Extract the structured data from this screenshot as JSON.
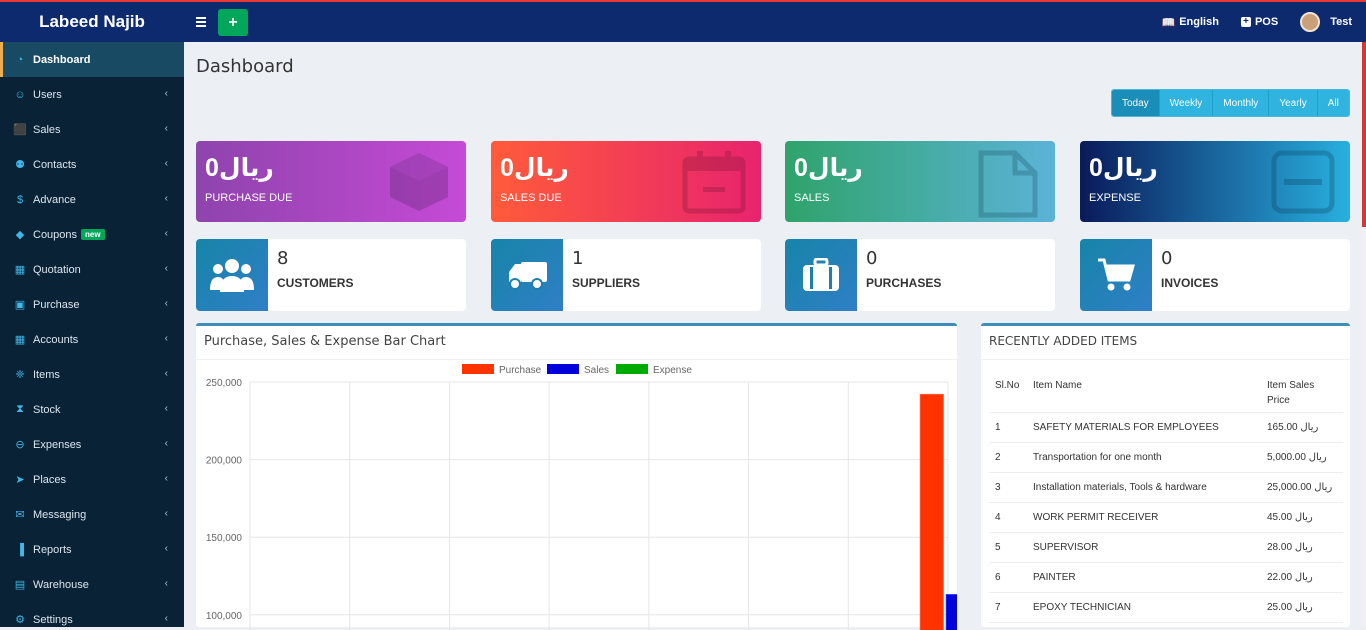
{
  "header": {
    "brand": "Labeed Najib",
    "add_label": "+",
    "language": "English",
    "pos": "POS",
    "user": "Test"
  },
  "sidebar": {
    "items": [
      {
        "label": "Dashboard",
        "icon": "dashboard-icon",
        "active": true
      },
      {
        "label": "Users",
        "icon": "users-icon"
      },
      {
        "label": "Sales",
        "icon": "cart-icon"
      },
      {
        "label": "Contacts",
        "icon": "contacts-icon"
      },
      {
        "label": "Advance",
        "icon": "dollar-icon"
      },
      {
        "label": "Coupons",
        "icon": "tag-icon",
        "badge": "new"
      },
      {
        "label": "Quotation",
        "icon": "calendar-icon"
      },
      {
        "label": "Purchase",
        "icon": "box-icon"
      },
      {
        "label": "Accounts",
        "icon": "grid-icon"
      },
      {
        "label": "Items",
        "icon": "cubes-icon"
      },
      {
        "label": "Stock",
        "icon": "hourglass-icon"
      },
      {
        "label": "Expenses",
        "icon": "minus-circle-icon"
      },
      {
        "label": "Places",
        "icon": "send-icon"
      },
      {
        "label": "Messaging",
        "icon": "envelope-icon"
      },
      {
        "label": "Reports",
        "icon": "bar-chart-icon"
      },
      {
        "label": "Warehouse",
        "icon": "building-icon"
      },
      {
        "label": "Settings",
        "icon": "cogs-icon"
      }
    ]
  },
  "page": {
    "title": "Dashboard",
    "ranges": [
      "Today",
      "Weekly",
      "Monthly",
      "Yearly",
      "All"
    ],
    "active_range": "Today"
  },
  "stat_cards": [
    {
      "amount": "ريال0",
      "label": "PURCHASE DUE",
      "icon": "cube-icon"
    },
    {
      "amount": "ريال0",
      "label": "SALES DUE",
      "icon": "calendar-minus-icon"
    },
    {
      "amount": "ريال0",
      "label": "SALES",
      "icon": "file-icon"
    },
    {
      "amount": "ريال0",
      "label": "EXPENSE",
      "icon": "minus-square-icon"
    }
  ],
  "info_boxes": [
    {
      "count": "8",
      "label": "CUSTOMERS",
      "icon": "users-group-icon"
    },
    {
      "count": "1",
      "label": "SUPPLIERS",
      "icon": "truck-icon"
    },
    {
      "count": "0",
      "label": "PURCHASES",
      "icon": "briefcase-icon"
    },
    {
      "count": "0",
      "label": "INVOICES",
      "icon": "shopping-cart-icon"
    }
  ],
  "chart_box": {
    "title": "Purchase, Sales & Expense Bar Chart"
  },
  "chart_data": {
    "type": "bar",
    "title": "",
    "categories": [
      "",
      "",
      "",
      "",
      "",
      "",
      ""
    ],
    "series": [
      {
        "name": "Purchase",
        "color": "#ff3300",
        "values": [
          0,
          0,
          0,
          0,
          0,
          0,
          242000
        ]
      },
      {
        "name": "Sales",
        "color": "#0000dd",
        "values": [
          0,
          0,
          0,
          0,
          0,
          0,
          113000
        ]
      },
      {
        "name": "Expense",
        "color": "#00aa00",
        "values": [
          0,
          0,
          0,
          0,
          0,
          0,
          0
        ]
      }
    ],
    "yticks": [
      "250,000",
      "200,000",
      "150,000",
      "100,000"
    ],
    "ylim": [
      0,
      250000
    ],
    "grid": true,
    "legend": "top"
  },
  "recent_items": {
    "title": "RECENTLY ADDED ITEMS",
    "columns": [
      "Sl.No",
      "Item Name",
      "Item Sales Price"
    ],
    "rows": [
      {
        "no": "1",
        "name": "SAFETY MATERIALS FOR EMPLOYEES",
        "price": "165.00 ريال"
      },
      {
        "no": "2",
        "name": "Transportation for one month",
        "price": "5,000.00 ريال"
      },
      {
        "no": "3",
        "name": "Installation materials, Tools & hardware",
        "price": "25,000.00 ريال"
      },
      {
        "no": "4",
        "name": "WORK PERMIT RECEIVER",
        "price": "45.00 ريال"
      },
      {
        "no": "5",
        "name": "SUPERVISOR",
        "price": "28.00 ريال"
      },
      {
        "no": "6",
        "name": "PAINTER",
        "price": "22.00 ريال"
      },
      {
        "no": "7",
        "name": "EPOXY TECHNICIAN",
        "price": "25.00 ريال"
      }
    ]
  }
}
